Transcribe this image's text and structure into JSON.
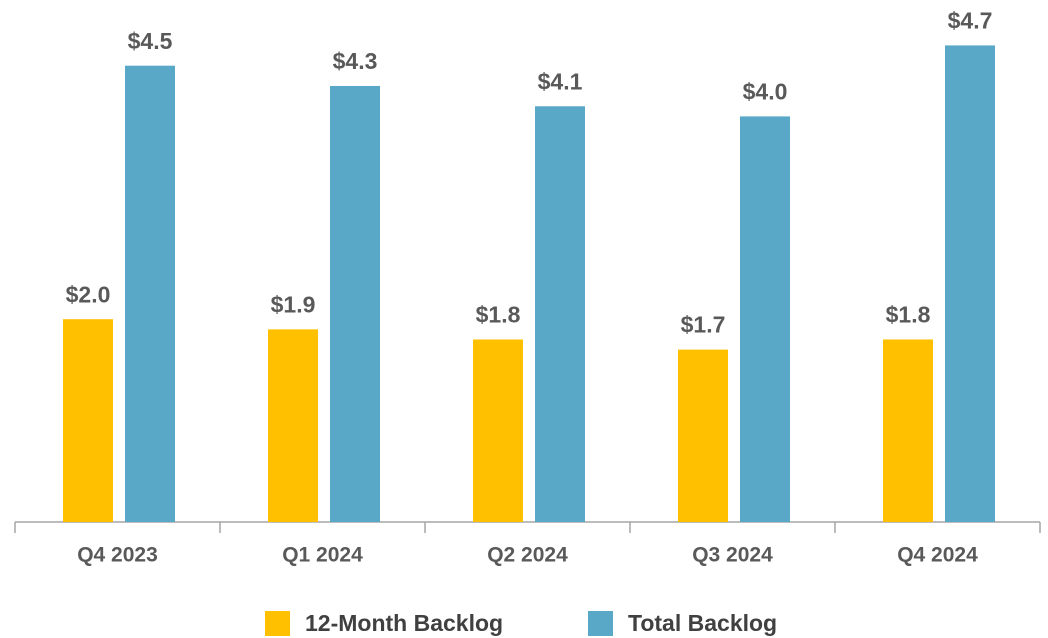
{
  "chart_data": {
    "type": "bar",
    "categories": [
      "Q4 2023",
      "Q1 2024",
      "Q2 2024",
      "Q3 2024",
      "Q4 2024"
    ],
    "series": [
      {
        "name": "12-Month Backlog",
        "color": "#ffc000",
        "values": [
          2.0,
          1.9,
          1.8,
          1.7,
          1.8
        ],
        "value_labels": [
          "$2.0",
          "$1.9",
          "$1.8",
          "$1.7",
          "$1.8"
        ]
      },
      {
        "name": "Total Backlog",
        "color": "#5aa8c8",
        "values": [
          4.5,
          4.3,
          4.1,
          4.0,
          4.7
        ],
        "value_labels": [
          "$4.5",
          "$4.3",
          "$4.1",
          "$4.0",
          "$4.7"
        ]
      }
    ],
    "ylim": [
      0,
      5
    ],
    "legend": "bottom"
  }
}
